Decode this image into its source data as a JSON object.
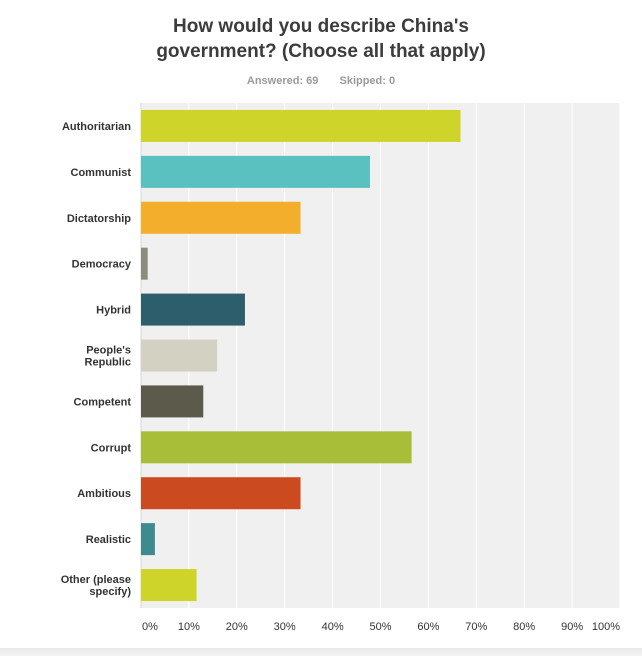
{
  "chart_data": {
    "type": "bar",
    "orientation": "horizontal",
    "title_lines": [
      "How would you describe China's",
      "government? (Choose all that apply)"
    ],
    "answered_label": "Answered: 69",
    "skipped_label": "Skipped: 0",
    "categories": [
      "Authoritarian",
      "Communist",
      "Dictatorship",
      "Democracy",
      "Hybrid",
      "People's Republic",
      "Competent",
      "Corrupt",
      "Ambitious",
      "Realistic",
      "Other (please specify)"
    ],
    "category_lines": [
      [
        "Authoritarian"
      ],
      [
        "Communist"
      ],
      [
        "Dictatorship"
      ],
      [
        "Democracy"
      ],
      [
        "Hybrid"
      ],
      [
        "People's",
        "Republic"
      ],
      [
        "Competent"
      ],
      [
        "Corrupt"
      ],
      [
        "Ambitious"
      ],
      [
        "Realistic"
      ],
      [
        "Other (please",
        "specify)"
      ]
    ],
    "values": [
      66.7,
      47.8,
      33.3,
      1.4,
      21.7,
      15.9,
      13.0,
      56.5,
      33.3,
      2.9,
      11.6
    ],
    "colors": [
      "#cfd42a",
      "#5bc0c0",
      "#f3ae2b",
      "#8c8c80",
      "#2c5f6b",
      "#d3d1c2",
      "#5b5a4b",
      "#a8be38",
      "#cb4a20",
      "#3d8a8f",
      "#cfd42a"
    ],
    "xticks": [
      "0%",
      "10%",
      "20%",
      "30%",
      "40%",
      "50%",
      "60%",
      "70%",
      "80%",
      "90%",
      "100%"
    ],
    "xlim": [
      0,
      100
    ],
    "grid": true,
    "plot_background": "#f0f0f0"
  }
}
